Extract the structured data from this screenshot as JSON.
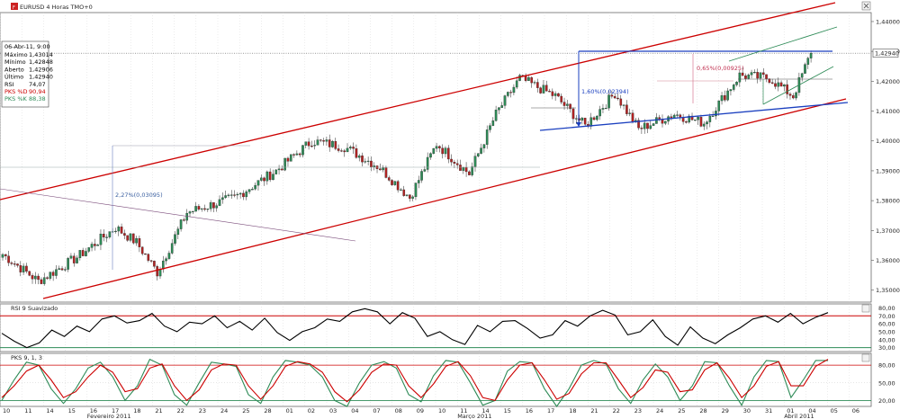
{
  "window": {
    "title": "EURUSD 4 Horas TMO+0"
  },
  "info_box": {
    "date": "06-Abr-11, 9:00",
    "rows": [
      {
        "label": "Máximo",
        "value": "1,43014",
        "color": "#000000"
      },
      {
        "label": "Mínimo",
        "value": "1,42848",
        "color": "#000000"
      },
      {
        "label": "Aberto",
        "value": "1,42906",
        "color": "#000000"
      },
      {
        "label": "Último",
        "value": "1,42940",
        "color": "#000000"
      },
      {
        "label": "RSI",
        "value": "74,07",
        "color": "#000000"
      },
      {
        "label": "PKS %D",
        "value": "90,94",
        "color": "#cc0000"
      },
      {
        "label": "PKS %K",
        "value": "88,38",
        "color": "#2e8b57"
      }
    ]
  },
  "chart_data": [
    {
      "type": "candlestick",
      "panel": "price",
      "title": "EURUSD 4 Horas TMO+0",
      "ylim": [
        1.346,
        1.443
      ],
      "y_ticks": [
        "1,44000",
        "1,43000",
        "1,42000",
        "1,41000",
        "1,40000",
        "1,39000",
        "1,38000",
        "1,37000",
        "1,36000",
        "1,35000"
      ],
      "y_tick_values": [
        1.44,
        1.43,
        1.42,
        1.41,
        1.4,
        1.39,
        1.38,
        1.37,
        1.36,
        1.35
      ],
      "last_price_label": "1,42940",
      "last_price": 1.4294,
      "key_closes": [
        [
          0,
          1.362
        ],
        [
          12,
          1.353
        ],
        [
          25,
          1.361
        ],
        [
          38,
          1.371
        ],
        [
          45,
          1.366
        ],
        [
          52,
          1.356
        ],
        [
          62,
          1.376
        ],
        [
          78,
          1.381
        ],
        [
          92,
          1.39
        ],
        [
          104,
          1.4
        ],
        [
          115,
          1.398
        ],
        [
          127,
          1.391
        ],
        [
          137,
          1.381
        ],
        [
          146,
          1.399
        ],
        [
          157,
          1.389
        ],
        [
          166,
          1.409
        ],
        [
          174,
          1.421
        ],
        [
          186,
          1.415
        ],
        [
          196,
          1.405
        ],
        [
          206,
          1.416
        ],
        [
          214,
          1.404
        ],
        [
          226,
          1.409
        ],
        [
          236,
          1.406
        ],
        [
          248,
          1.422
        ],
        [
          258,
          1.421
        ],
        [
          266,
          1.415
        ],
        [
          272,
          1.4294
        ]
      ],
      "annotations": [
        {
          "text": "2,27%(0,03095)"
        },
        {
          "text": "1,60%(0,02394)"
        },
        {
          "text": "0,65%(0,00925)"
        }
      ]
    },
    {
      "type": "line",
      "panel": "rsi",
      "title": "RSI 9 Suavizado",
      "ylim": [
        25,
        85
      ],
      "y_ticks": [
        "80,00",
        "70,00",
        "60,00",
        "50,00",
        "40,00",
        "30,00"
      ],
      "y_tick_values": [
        80,
        70,
        60,
        50,
        40,
        30
      ],
      "levels": [
        70,
        30
      ],
      "values": [
        48,
        38,
        30,
        36,
        52,
        44,
        57,
        50,
        66,
        70,
        61,
        64,
        73,
        57,
        50,
        62,
        60,
        70,
        55,
        63,
        52,
        67,
        49,
        39,
        50,
        55,
        66,
        63,
        75,
        79,
        75,
        60,
        74,
        67,
        44,
        50,
        40,
        34,
        58,
        50,
        63,
        64,
        54,
        42,
        46,
        64,
        57,
        70,
        77,
        71,
        46,
        50,
        65,
        44,
        33,
        56,
        42,
        35,
        46,
        55,
        66,
        70,
        62,
        73,
        60,
        68,
        74
      ]
    },
    {
      "type": "line",
      "panel": "stochastic",
      "title": "PKS 9, 1, 3",
      "ylim": [
        10,
        100
      ],
      "y_ticks": [
        "80,00",
        "50,00",
        "20,00"
      ],
      "y_tick_values": [
        80,
        50,
        20
      ],
      "levels": [
        80,
        20
      ],
      "series": [
        {
          "name": "PKS %K",
          "color": "#2e8b57",
          "values": [
            20,
            55,
            85,
            80,
            40,
            15,
            40,
            75,
            85,
            60,
            20,
            45,
            90,
            80,
            30,
            12,
            50,
            85,
            82,
            78,
            30,
            15,
            60,
            88,
            85,
            80,
            60,
            20,
            10,
            50,
            80,
            86,
            75,
            30,
            18,
            62,
            88,
            85,
            50,
            12,
            20,
            70,
            86,
            84,
            40,
            10,
            40,
            80,
            88,
            82,
            40,
            15,
            55,
            82,
            60,
            20,
            45,
            86,
            84,
            45,
            12,
            60,
            88,
            86,
            25,
            55,
            88,
            88
          ]
        },
        {
          "name": "PKS %D",
          "color": "#cc0000",
          "values": [
            25,
            45,
            70,
            80,
            55,
            25,
            35,
            60,
            80,
            68,
            35,
            40,
            75,
            82,
            45,
            20,
            38,
            72,
            82,
            80,
            45,
            22,
            45,
            78,
            86,
            82,
            68,
            35,
            18,
            38,
            68,
            82,
            80,
            45,
            25,
            48,
            78,
            86,
            62,
            25,
            20,
            55,
            80,
            84,
            55,
            22,
            32,
            65,
            84,
            84,
            55,
            25,
            42,
            72,
            68,
            35,
            38,
            72,
            84,
            58,
            25,
            45,
            78,
            86,
            45,
            45,
            78,
            90
          ]
        }
      ]
    }
  ],
  "x_axis": {
    "day_labels": [
      "10",
      "11",
      "14",
      "15",
      "16",
      "17",
      "18",
      "21",
      "22",
      "23",
      "24",
      "25",
      "28",
      "01",
      "02",
      "03",
      "04",
      "07",
      "08",
      "09",
      "10",
      "11",
      "14",
      "15",
      "16",
      "17",
      "18",
      "21",
      "22",
      "23",
      "24",
      "25",
      "28",
      "29",
      "30",
      "31",
      "01",
      "04",
      "05",
      "06"
    ],
    "month_labels": [
      "Fevereiro 2011",
      "Março 2011",
      "Abril 2011"
    ]
  },
  "colors": {
    "up": "#2e8b57",
    "down": "#b22222",
    "channel": "#cc0000",
    "pattern": "#1a3fbf",
    "wedge": "#2e8b57"
  }
}
